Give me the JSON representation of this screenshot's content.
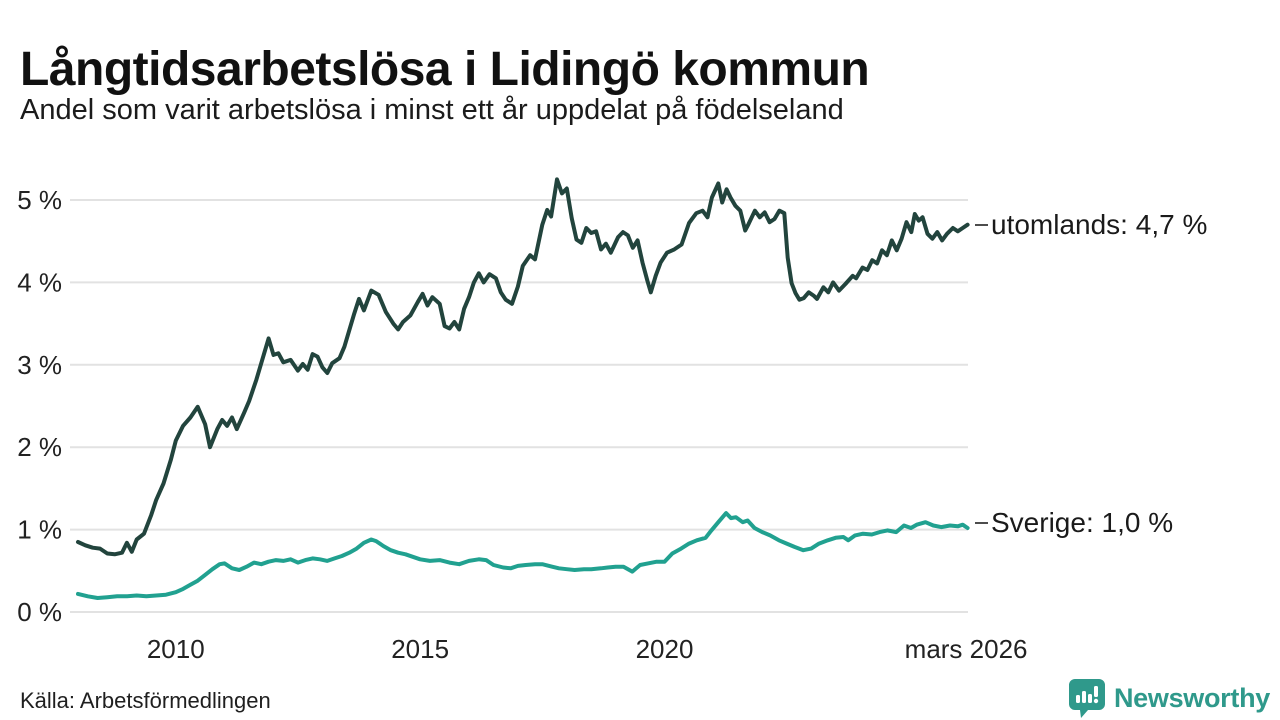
{
  "header": {
    "title": "Långtidsarbetslösa i Lidingö kommun",
    "subtitle": "Andel som varit arbetslösa i minst ett år uppdelat på födelseland"
  },
  "footer": {
    "source": "Källa: Arbetsförmedlingen",
    "brand": "Newsworthy",
    "brand_color": "#2f998b"
  },
  "chart_data": {
    "type": "line",
    "title": "Långtidsarbetslösa i Lidingö kommun",
    "subtitle": "Andel som varit arbetslösa i minst ett år uppdelat på födelseland",
    "grid": "horizontal-only",
    "legend_position": "end-of-line-labels-right",
    "x_axis": {
      "range": [
        2008.0,
        2026.25
      ],
      "ticks": [
        {
          "label": "2010",
          "year": 2010
        },
        {
          "label": "2015",
          "year": 2015
        },
        {
          "label": "2020",
          "year": 2020
        },
        {
          "label": "mars 2026",
          "year": 2026.17
        }
      ]
    },
    "y_axis": {
      "range": [
        0,
        5.4
      ],
      "unit": "%",
      "ticks": [
        {
          "label": "0 %",
          "value": 0
        },
        {
          "label": "1 %",
          "value": 1
        },
        {
          "label": "2 %",
          "value": 2
        },
        {
          "label": "3 %",
          "value": 3
        },
        {
          "label": "4 %",
          "value": 4
        },
        {
          "label": "5 %",
          "value": 5
        }
      ]
    },
    "series": [
      {
        "name": "utomlands",
        "label": "utomlands: 4,7 %",
        "latest_value": "4,7 %",
        "color": "#22443d",
        "points": [
          [
            2008.0,
            0.85
          ],
          [
            2008.15,
            0.81
          ],
          [
            2008.3,
            0.78
          ],
          [
            2008.45,
            0.77
          ],
          [
            2008.6,
            0.71
          ],
          [
            2008.75,
            0.7
          ],
          [
            2008.9,
            0.72
          ],
          [
            2009.0,
            0.84
          ],
          [
            2009.1,
            0.73
          ],
          [
            2009.2,
            0.88
          ],
          [
            2009.35,
            0.95
          ],
          [
            2009.5,
            1.18
          ],
          [
            2009.6,
            1.36
          ],
          [
            2009.75,
            1.56
          ],
          [
            2009.9,
            1.85
          ],
          [
            2010.0,
            2.08
          ],
          [
            2010.15,
            2.26
          ],
          [
            2010.3,
            2.36
          ],
          [
            2010.45,
            2.49
          ],
          [
            2010.6,
            2.28
          ],
          [
            2010.7,
            2.0
          ],
          [
            2010.85,
            2.22
          ],
          [
            2010.95,
            2.33
          ],
          [
            2011.05,
            2.26
          ],
          [
            2011.15,
            2.36
          ],
          [
            2011.25,
            2.22
          ],
          [
            2011.4,
            2.42
          ],
          [
            2011.5,
            2.56
          ],
          [
            2011.65,
            2.82
          ],
          [
            2011.8,
            3.12
          ],
          [
            2011.9,
            3.32
          ],
          [
            2012.0,
            3.12
          ],
          [
            2012.1,
            3.14
          ],
          [
            2012.2,
            3.03
          ],
          [
            2012.35,
            3.06
          ],
          [
            2012.5,
            2.93
          ],
          [
            2012.6,
            3.01
          ],
          [
            2012.7,
            2.94
          ],
          [
            2012.8,
            3.13
          ],
          [
            2012.9,
            3.1
          ],
          [
            2013.0,
            2.97
          ],
          [
            2013.1,
            2.9
          ],
          [
            2013.2,
            3.02
          ],
          [
            2013.35,
            3.08
          ],
          [
            2013.45,
            3.22
          ],
          [
            2013.55,
            3.42
          ],
          [
            2013.65,
            3.62
          ],
          [
            2013.75,
            3.8
          ],
          [
            2013.85,
            3.66
          ],
          [
            2014.0,
            3.9
          ],
          [
            2014.15,
            3.85
          ],
          [
            2014.3,
            3.64
          ],
          [
            2014.45,
            3.5
          ],
          [
            2014.55,
            3.43
          ],
          [
            2014.65,
            3.52
          ],
          [
            2014.8,
            3.6
          ],
          [
            2014.95,
            3.76
          ],
          [
            2015.05,
            3.86
          ],
          [
            2015.15,
            3.72
          ],
          [
            2015.25,
            3.82
          ],
          [
            2015.4,
            3.74
          ],
          [
            2015.5,
            3.47
          ],
          [
            2015.6,
            3.44
          ],
          [
            2015.7,
            3.52
          ],
          [
            2015.8,
            3.43
          ],
          [
            2015.9,
            3.68
          ],
          [
            2016.0,
            3.82
          ],
          [
            2016.1,
            4.0
          ],
          [
            2016.2,
            4.11
          ],
          [
            2016.3,
            4.0
          ],
          [
            2016.42,
            4.1
          ],
          [
            2016.55,
            4.05
          ],
          [
            2016.65,
            3.88
          ],
          [
            2016.75,
            3.79
          ],
          [
            2016.88,
            3.74
          ],
          [
            2017.0,
            3.95
          ],
          [
            2017.1,
            4.2
          ],
          [
            2017.25,
            4.33
          ],
          [
            2017.35,
            4.28
          ],
          [
            2017.5,
            4.7
          ],
          [
            2017.6,
            4.88
          ],
          [
            2017.68,
            4.8
          ],
          [
            2017.8,
            5.25
          ],
          [
            2017.9,
            5.08
          ],
          [
            2018.0,
            5.14
          ],
          [
            2018.1,
            4.78
          ],
          [
            2018.2,
            4.52
          ],
          [
            2018.3,
            4.48
          ],
          [
            2018.4,
            4.66
          ],
          [
            2018.5,
            4.6
          ],
          [
            2018.6,
            4.62
          ],
          [
            2018.7,
            4.4
          ],
          [
            2018.8,
            4.47
          ],
          [
            2018.9,
            4.36
          ],
          [
            2019.05,
            4.55
          ],
          [
            2019.15,
            4.61
          ],
          [
            2019.25,
            4.57
          ],
          [
            2019.35,
            4.42
          ],
          [
            2019.45,
            4.51
          ],
          [
            2019.55,
            4.24
          ],
          [
            2019.65,
            4.02
          ],
          [
            2019.72,
            3.88
          ],
          [
            2019.82,
            4.08
          ],
          [
            2019.92,
            4.24
          ],
          [
            2020.05,
            4.36
          ],
          [
            2020.2,
            4.4
          ],
          [
            2020.35,
            4.46
          ],
          [
            2020.5,
            4.72
          ],
          [
            2020.65,
            4.84
          ],
          [
            2020.78,
            4.87
          ],
          [
            2020.88,
            4.79
          ],
          [
            2020.97,
            5.03
          ],
          [
            2021.1,
            5.2
          ],
          [
            2021.18,
            4.97
          ],
          [
            2021.27,
            5.13
          ],
          [
            2021.35,
            5.03
          ],
          [
            2021.45,
            4.93
          ],
          [
            2021.55,
            4.87
          ],
          [
            2021.65,
            4.63
          ],
          [
            2021.72,
            4.71
          ],
          [
            2021.85,
            4.87
          ],
          [
            2021.95,
            4.79
          ],
          [
            2022.05,
            4.85
          ],
          [
            2022.15,
            4.73
          ],
          [
            2022.25,
            4.77
          ],
          [
            2022.35,
            4.87
          ],
          [
            2022.45,
            4.84
          ],
          [
            2022.52,
            4.3
          ],
          [
            2022.6,
            3.99
          ],
          [
            2022.68,
            3.87
          ],
          [
            2022.76,
            3.79
          ],
          [
            2022.85,
            3.81
          ],
          [
            2022.95,
            3.88
          ],
          [
            2023.05,
            3.84
          ],
          [
            2023.12,
            3.8
          ],
          [
            2023.25,
            3.94
          ],
          [
            2023.35,
            3.88
          ],
          [
            2023.45,
            4.0
          ],
          [
            2023.57,
            3.9
          ],
          [
            2023.7,
            3.98
          ],
          [
            2023.85,
            4.08
          ],
          [
            2023.92,
            4.05
          ],
          [
            2024.05,
            4.18
          ],
          [
            2024.15,
            4.15
          ],
          [
            2024.25,
            4.27
          ],
          [
            2024.35,
            4.23
          ],
          [
            2024.45,
            4.39
          ],
          [
            2024.55,
            4.33
          ],
          [
            2024.65,
            4.51
          ],
          [
            2024.75,
            4.39
          ],
          [
            2024.85,
            4.53
          ],
          [
            2024.95,
            4.73
          ],
          [
            2025.05,
            4.61
          ],
          [
            2025.12,
            4.83
          ],
          [
            2025.2,
            4.75
          ],
          [
            2025.28,
            4.79
          ],
          [
            2025.38,
            4.59
          ],
          [
            2025.48,
            4.53
          ],
          [
            2025.58,
            4.61
          ],
          [
            2025.68,
            4.51
          ],
          [
            2025.78,
            4.59
          ],
          [
            2025.9,
            4.66
          ],
          [
            2026.0,
            4.62
          ],
          [
            2026.1,
            4.66
          ],
          [
            2026.2,
            4.7
          ]
        ]
      },
      {
        "name": "Sverige",
        "label": "Sverige: 1,0 %",
        "latest_value": "1,0 %",
        "color": "#21a190",
        "points": [
          [
            2008.0,
            0.22
          ],
          [
            2008.2,
            0.19
          ],
          [
            2008.4,
            0.17
          ],
          [
            2008.6,
            0.18
          ],
          [
            2008.8,
            0.19
          ],
          [
            2009.0,
            0.19
          ],
          [
            2009.2,
            0.2
          ],
          [
            2009.4,
            0.19
          ],
          [
            2009.6,
            0.2
          ],
          [
            2009.8,
            0.21
          ],
          [
            2010.0,
            0.24
          ],
          [
            2010.15,
            0.28
          ],
          [
            2010.3,
            0.33
          ],
          [
            2010.45,
            0.38
          ],
          [
            2010.6,
            0.45
          ],
          [
            2010.75,
            0.52
          ],
          [
            2010.9,
            0.58
          ],
          [
            2011.0,
            0.59
          ],
          [
            2011.15,
            0.53
          ],
          [
            2011.3,
            0.51
          ],
          [
            2011.45,
            0.55
          ],
          [
            2011.6,
            0.6
          ],
          [
            2011.75,
            0.58
          ],
          [
            2011.9,
            0.61
          ],
          [
            2012.05,
            0.63
          ],
          [
            2012.2,
            0.62
          ],
          [
            2012.35,
            0.64
          ],
          [
            2012.5,
            0.6
          ],
          [
            2012.65,
            0.63
          ],
          [
            2012.8,
            0.65
          ],
          [
            2012.95,
            0.64
          ],
          [
            2013.1,
            0.62
          ],
          [
            2013.25,
            0.65
          ],
          [
            2013.4,
            0.68
          ],
          [
            2013.55,
            0.72
          ],
          [
            2013.7,
            0.77
          ],
          [
            2013.85,
            0.84
          ],
          [
            2014.0,
            0.88
          ],
          [
            2014.1,
            0.86
          ],
          [
            2014.25,
            0.8
          ],
          [
            2014.4,
            0.75
          ],
          [
            2014.55,
            0.72
          ],
          [
            2014.7,
            0.7
          ],
          [
            2014.85,
            0.67
          ],
          [
            2015.0,
            0.64
          ],
          [
            2015.2,
            0.62
          ],
          [
            2015.4,
            0.63
          ],
          [
            2015.6,
            0.6
          ],
          [
            2015.8,
            0.58
          ],
          [
            2016.0,
            0.62
          ],
          [
            2016.2,
            0.64
          ],
          [
            2016.35,
            0.63
          ],
          [
            2016.5,
            0.57
          ],
          [
            2016.7,
            0.54
          ],
          [
            2016.85,
            0.53
          ],
          [
            2017.0,
            0.56
          ],
          [
            2017.16,
            0.57
          ],
          [
            2017.35,
            0.58
          ],
          [
            2017.5,
            0.58
          ],
          [
            2017.7,
            0.55
          ],
          [
            2017.84,
            0.53
          ],
          [
            2018.0,
            0.52
          ],
          [
            2018.16,
            0.51
          ],
          [
            2018.35,
            0.52
          ],
          [
            2018.5,
            0.52
          ],
          [
            2018.7,
            0.53
          ],
          [
            2018.84,
            0.54
          ],
          [
            2019.0,
            0.55
          ],
          [
            2019.16,
            0.55
          ],
          [
            2019.34,
            0.49
          ],
          [
            2019.5,
            0.57
          ],
          [
            2019.66,
            0.59
          ],
          [
            2019.84,
            0.61
          ],
          [
            2020.0,
            0.61
          ],
          [
            2020.16,
            0.71
          ],
          [
            2020.34,
            0.77
          ],
          [
            2020.5,
            0.83
          ],
          [
            2020.66,
            0.87
          ],
          [
            2020.84,
            0.9
          ],
          [
            2020.96,
            0.99
          ],
          [
            2021.1,
            1.09
          ],
          [
            2021.26,
            1.2
          ],
          [
            2021.36,
            1.14
          ],
          [
            2021.46,
            1.15
          ],
          [
            2021.6,
            1.09
          ],
          [
            2021.7,
            1.11
          ],
          [
            2021.84,
            1.02
          ],
          [
            2022.0,
            0.97
          ],
          [
            2022.16,
            0.93
          ],
          [
            2022.34,
            0.87
          ],
          [
            2022.5,
            0.83
          ],
          [
            2022.66,
            0.79
          ],
          [
            2022.84,
            0.75
          ],
          [
            2023.0,
            0.77
          ],
          [
            2023.16,
            0.83
          ],
          [
            2023.34,
            0.87
          ],
          [
            2023.5,
            0.9
          ],
          [
            2023.66,
            0.91
          ],
          [
            2023.76,
            0.87
          ],
          [
            2023.9,
            0.93
          ],
          [
            2024.06,
            0.95
          ],
          [
            2024.24,
            0.94
          ],
          [
            2024.4,
            0.97
          ],
          [
            2024.56,
            0.99
          ],
          [
            2024.74,
            0.97
          ],
          [
            2024.9,
            1.05
          ],
          [
            2025.04,
            1.02
          ],
          [
            2025.16,
            1.06
          ],
          [
            2025.34,
            1.09
          ],
          [
            2025.5,
            1.05
          ],
          [
            2025.66,
            1.03
          ],
          [
            2025.84,
            1.05
          ],
          [
            2026.0,
            1.04
          ],
          [
            2026.1,
            1.06
          ],
          [
            2026.2,
            1.02
          ]
        ]
      }
    ]
  },
  "style_tokens": {
    "grid_color": "#e2e2e2",
    "axis_text_color": "#222222",
    "label_dash_color": "#4d4d4d"
  }
}
